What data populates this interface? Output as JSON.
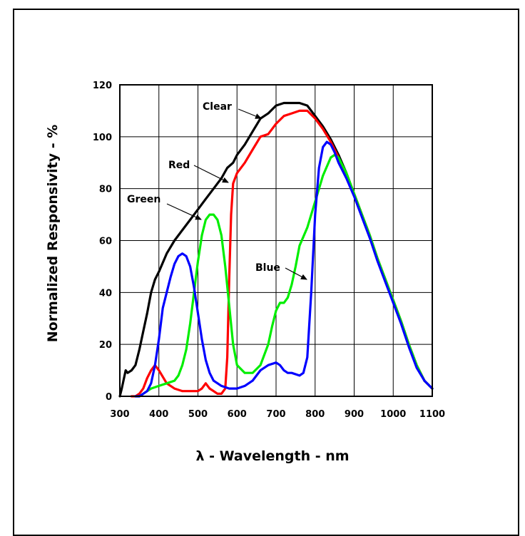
{
  "chart_data": {
    "type": "line",
    "title": "",
    "xlabel": "λ - Wavelength - nm",
    "ylabel": "Normalized Responsivity - %",
    "xlim": [
      300,
      1100
    ],
    "ylim": [
      0,
      120
    ],
    "xticks": [
      300,
      400,
      500,
      600,
      700,
      800,
      900,
      1000,
      1100
    ],
    "yticks": [
      0,
      20,
      40,
      60,
      80,
      100,
      120
    ],
    "grid": true,
    "legend": "none",
    "series": [
      {
        "name": "Clear",
        "color": "#000000",
        "x": [
          300,
          305,
          315,
          320,
          330,
          340,
          350,
          360,
          370,
          380,
          390,
          400,
          420,
          440,
          460,
          480,
          500,
          520,
          540,
          560,
          575,
          590,
          600,
          620,
          640,
          660,
          680,
          700,
          720,
          740,
          760,
          780,
          800,
          820,
          840,
          860,
          880,
          900,
          920,
          940,
          960,
          980,
          1000,
          1020,
          1040,
          1060,
          1080,
          1100
        ],
        "y": [
          0,
          3,
          10,
          9,
          10,
          12,
          18,
          25,
          32,
          40,
          45,
          48,
          55,
          60,
          64,
          68,
          72,
          76,
          80,
          84,
          88,
          90,
          93,
          97,
          102,
          107,
          109,
          112,
          113,
          113,
          113,
          112,
          108,
          104,
          99,
          93,
          86,
          78,
          70,
          62,
          53,
          45,
          37,
          29,
          20,
          12,
          6,
          3
        ]
      },
      {
        "name": "Red",
        "color": "#ff0000",
        "x": [
          330,
          340,
          350,
          360,
          370,
          380,
          390,
          400,
          420,
          440,
          460,
          480,
          500,
          510,
          520,
          530,
          540,
          550,
          560,
          570,
          575,
          580,
          585,
          590,
          600,
          620,
          640,
          660,
          680,
          700,
          720,
          740,
          760,
          780,
          800,
          820,
          840,
          860,
          880,
          900,
          920,
          940,
          960,
          980,
          1000,
          1020,
          1040,
          1060,
          1080,
          1100
        ],
        "y": [
          0,
          0,
          1,
          3,
          7,
          10,
          12,
          10,
          5,
          3,
          2,
          2,
          2,
          3,
          5,
          3,
          2,
          1,
          1,
          3,
          15,
          45,
          70,
          82,
          86,
          90,
          95,
          100,
          101,
          105,
          108,
          109,
          110,
          110,
          107,
          103,
          98,
          92,
          85,
          78,
          70,
          62,
          53,
          45,
          37,
          29,
          20,
          12,
          6,
          3
        ]
      },
      {
        "name": "Green",
        "color": "#00ee00",
        "x": [
          340,
          350,
          360,
          370,
          380,
          400,
          420,
          440,
          450,
          460,
          470,
          480,
          490,
          500,
          510,
          520,
          530,
          540,
          550,
          560,
          570,
          580,
          590,
          600,
          620,
          640,
          660,
          680,
          690,
          700,
          710,
          720,
          730,
          740,
          750,
          760,
          780,
          800,
          820,
          840,
          850,
          860,
          880,
          900,
          920,
          940,
          960,
          980,
          1000,
          1020,
          1040,
          1060,
          1080,
          1100
        ],
        "y": [
          0,
          0,
          1,
          2,
          3,
          4,
          5,
          6,
          8,
          12,
          18,
          28,
          40,
          52,
          62,
          68,
          70,
          70,
          68,
          62,
          50,
          35,
          20,
          12,
          9,
          9,
          12,
          20,
          27,
          33,
          36,
          36,
          38,
          43,
          50,
          58,
          65,
          75,
          85,
          92,
          93,
          92,
          86,
          78,
          70,
          62,
          53,
          45,
          37,
          29,
          20,
          12,
          6,
          3
        ]
      },
      {
        "name": "Blue",
        "color": "#0000ff",
        "x": [
          340,
          350,
          360,
          370,
          380,
          390,
          400,
          410,
          420,
          430,
          440,
          450,
          460,
          470,
          480,
          490,
          500,
          510,
          520,
          530,
          540,
          560,
          580,
          600,
          620,
          640,
          660,
          680,
          700,
          710,
          720,
          730,
          740,
          760,
          770,
          780,
          790,
          800,
          810,
          820,
          830,
          840,
          850,
          860,
          880,
          900,
          920,
          940,
          960,
          980,
          1000,
          1020,
          1040,
          1060,
          1080,
          1100
        ],
        "y": [
          0,
          0,
          1,
          2,
          5,
          12,
          22,
          34,
          40,
          46,
          51,
          54,
          55,
          54,
          50,
          42,
          32,
          22,
          14,
          9,
          6,
          4,
          3,
          3,
          4,
          6,
          10,
          12,
          13,
          12,
          10,
          9,
          9,
          8,
          9,
          15,
          40,
          70,
          88,
          96,
          98,
          97,
          94,
          90,
          84,
          77,
          69,
          61,
          52,
          44,
          36,
          28,
          19,
          11,
          6,
          3
        ]
      }
    ],
    "annotations": [
      {
        "text": "Clear",
        "series": "Clear",
        "text_at": [
          282,
          114
        ],
        "arrow_to": [
          320,
          168
        ]
      },
      {
        "text": "Red",
        "series": "Red",
        "text_at": [
          242,
          235
        ],
        "arrow_to": [
          302,
          197
        ]
      },
      {
        "text": "Green",
        "series": "Green",
        "text_at": [
          174,
          280
        ],
        "arrow_to": [
          244,
          272
        ]
      },
      {
        "text": "Blue",
        "series": "Blue",
        "text_at": [
          354,
          375
        ],
        "arrow_to": [
          376,
          375
        ]
      }
    ]
  }
}
